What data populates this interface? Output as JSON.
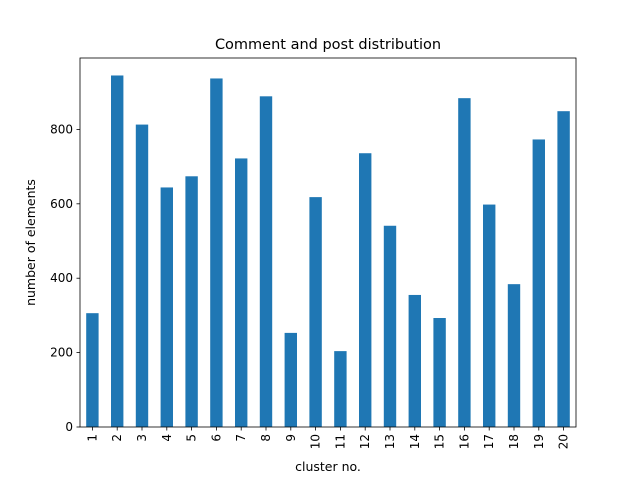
{
  "chart_data": {
    "type": "bar",
    "title": "Comment and post distribution",
    "xlabel": "cluster no.",
    "ylabel": "number of elements",
    "categories": [
      "1",
      "2",
      "3",
      "4",
      "5",
      "6",
      "7",
      "8",
      "9",
      "10",
      "11",
      "12",
      "13",
      "14",
      "15",
      "16",
      "17",
      "18",
      "19",
      "20"
    ],
    "values": [
      306,
      945,
      813,
      644,
      674,
      937,
      722,
      889,
      253,
      618,
      204,
      736,
      541,
      355,
      293,
      884,
      598,
      384,
      773,
      849
    ],
    "ylim": [
      0,
      992
    ],
    "yticks": [
      0,
      200,
      400,
      600,
      800
    ],
    "grid": false,
    "legend": "none",
    "bar_color": "#1f77b4"
  }
}
